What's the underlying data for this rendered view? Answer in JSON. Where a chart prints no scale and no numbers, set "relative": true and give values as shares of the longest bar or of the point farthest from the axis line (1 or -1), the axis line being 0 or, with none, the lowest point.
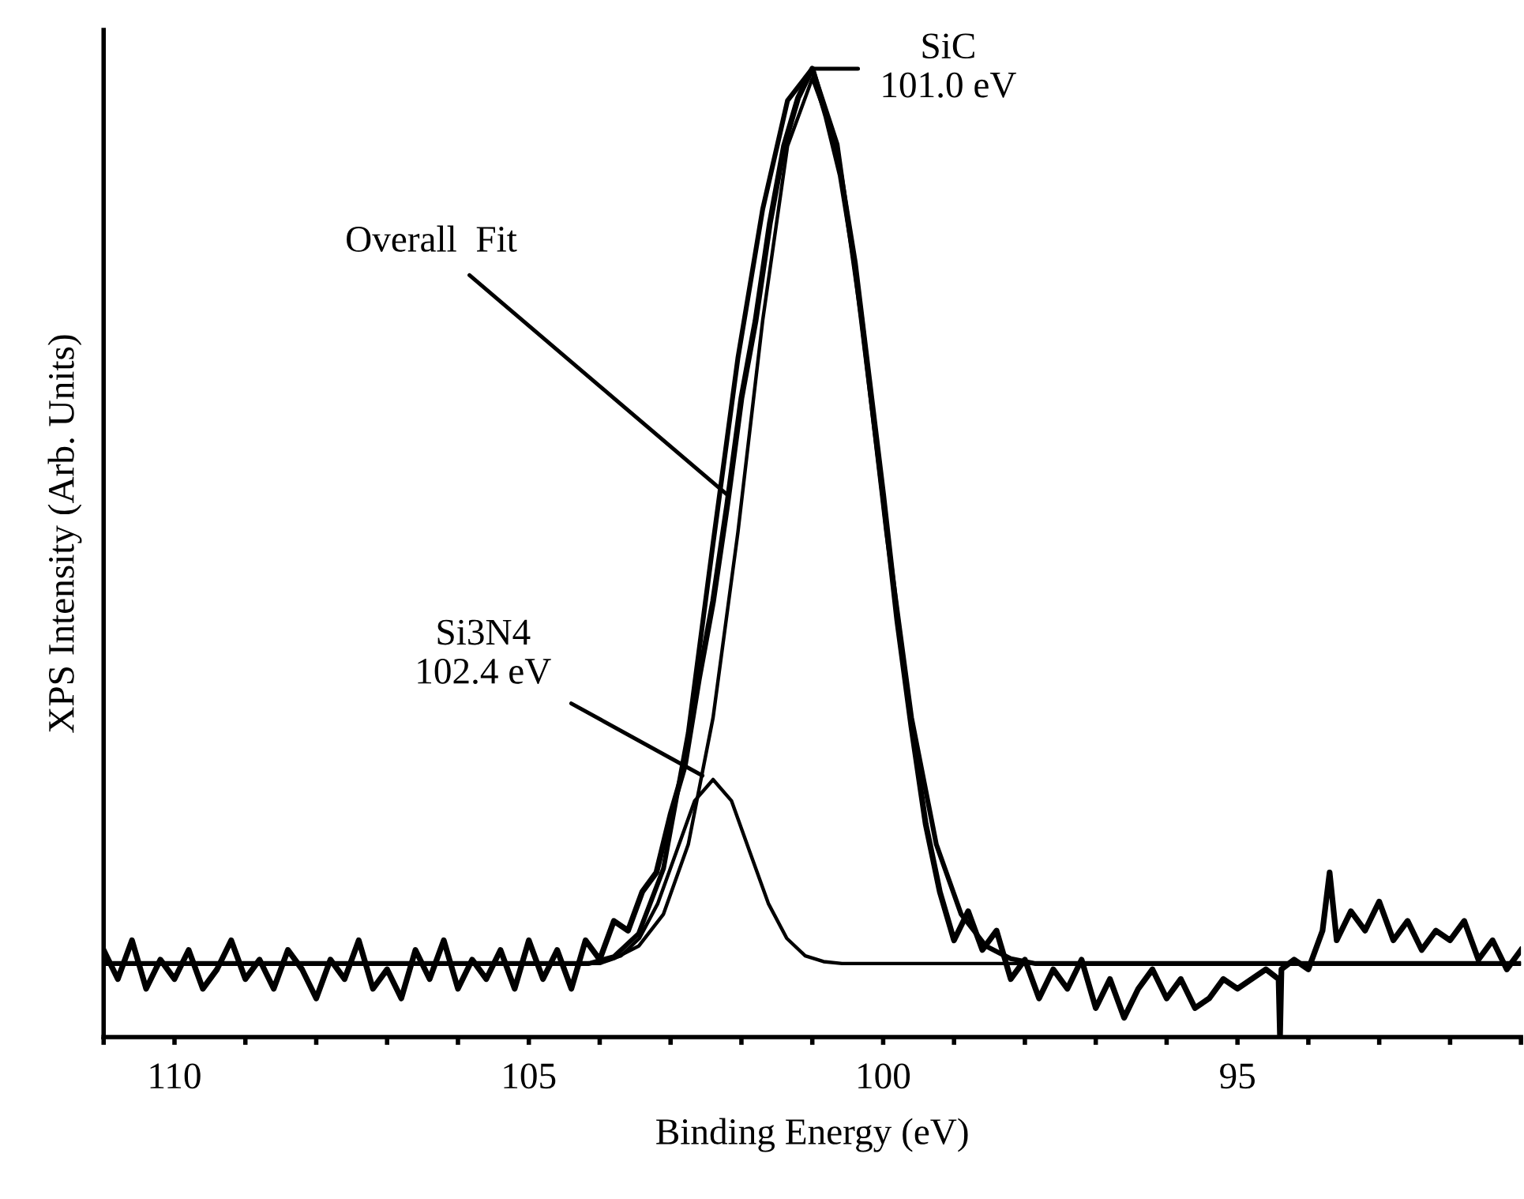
{
  "chart_data": {
    "type": "line",
    "xlabel": "Binding Energy (eV)",
    "ylabel": "XPS Intensity (Arb. Units)",
    "relative": true,
    "xlim": [
      111.0,
      91.0
    ],
    "xticks": [
      {
        "value": 111,
        "label": null
      },
      110,
      {
        "value": 109,
        "label": null
      },
      {
        "value": 108,
        "label": null
      },
      {
        "value": 107,
        "label": null
      },
      {
        "value": 106,
        "label": null
      },
      105,
      {
        "value": 104,
        "label": null
      },
      {
        "value": 103,
        "label": null
      },
      {
        "value": 102,
        "label": null
      },
      {
        "value": 101,
        "label": null
      },
      100,
      {
        "value": 99,
        "label": null
      },
      {
        "value": 98,
        "label": null
      },
      {
        "value": 97,
        "label": null
      },
      {
        "value": 96,
        "label": null
      },
      95,
      {
        "value": 94,
        "label": null
      },
      {
        "value": 93,
        "label": null
      },
      {
        "value": 92,
        "label": null
      },
      {
        "value": 91,
        "label": null
      }
    ],
    "grid": false,
    "legend": false,
    "marker": "none",
    "line_style": "solid",
    "series": [
      {
        "color": "#000000",
        "x": [
          111.0,
          110.8,
          110.6,
          110.4,
          110.2,
          110.0,
          109.8,
          109.6,
          109.4,
          109.2,
          109.0,
          108.8,
          108.6,
          108.4,
          108.2,
          108.0,
          107.8,
          107.6,
          107.4,
          107.2,
          107.0,
          106.8,
          106.6,
          106.4,
          106.2,
          106.0,
          105.8,
          105.6,
          105.4,
          105.2,
          105.0,
          104.8,
          104.6,
          104.4,
          104.2,
          104.0,
          103.8,
          103.6,
          103.4,
          103.2,
          103.0,
          102.8,
          102.6,
          102.4,
          102.2,
          102.0,
          101.8,
          101.6,
          101.4,
          101.2,
          101.0,
          100.8,
          100.6,
          100.4,
          100.2,
          100.0,
          99.8,
          99.6,
          99.4,
          99.2,
          99.0,
          98.8,
          98.6,
          98.4,
          98.2,
          98.0,
          97.8,
          97.6,
          97.4,
          97.2,
          97.0,
          96.8,
          96.6,
          96.4,
          96.2,
          96.0,
          95.8,
          95.6,
          95.4,
          95.2,
          95.0,
          94.8,
          94.6,
          94.42,
          94.4,
          94.38,
          94.2,
          94.0,
          93.8,
          93.7,
          93.6,
          93.4,
          93.2,
          93.0,
          92.8,
          92.6,
          92.4,
          92.2,
          92.0,
          91.8,
          91.6,
          91.4,
          91.2,
          91.0
        ],
        "values": [
          0.09,
          0.06,
          0.1,
          0.05,
          0.08,
          0.06,
          0.09,
          0.05,
          0.07,
          0.1,
          0.06,
          0.08,
          0.05,
          0.09,
          0.07,
          0.04,
          0.08,
          0.06,
          0.1,
          0.05,
          0.07,
          0.04,
          0.09,
          0.06,
          0.1,
          0.05,
          0.08,
          0.06,
          0.09,
          0.05,
          0.1,
          0.06,
          0.09,
          0.05,
          0.1,
          0.08,
          0.12,
          0.11,
          0.15,
          0.17,
          0.23,
          0.28,
          0.37,
          0.45,
          0.55,
          0.66,
          0.74,
          0.84,
          0.92,
          0.97,
          1.0,
          0.95,
          0.89,
          0.8,
          0.68,
          0.56,
          0.43,
          0.32,
          0.22,
          0.15,
          0.1,
          0.13,
          0.09,
          0.11,
          0.06,
          0.08,
          0.04,
          0.07,
          0.05,
          0.08,
          0.03,
          0.06,
          0.02,
          0.05,
          0.07,
          0.04,
          0.06,
          0.03,
          0.04,
          0.06,
          0.05,
          0.06,
          0.07,
          0.06,
          0.0,
          0.07,
          0.08,
          0.07,
          0.11,
          0.17,
          0.1,
          0.13,
          0.11,
          0.14,
          0.1,
          0.12,
          0.09,
          0.11,
          0.1,
          0.12,
          0.08,
          0.1,
          0.07,
          0.09
        ]
      },
      {
        "color": "#000000",
        "x": [
          111.0,
          104.15,
          103.8,
          103.45,
          103.1,
          102.75,
          102.4,
          102.05,
          101.7,
          101.35,
          101.0,
          100.65,
          100.3,
          99.95,
          99.6,
          99.25,
          98.9,
          98.55,
          98.2,
          97.85,
          91.0
        ],
        "values": [
          0.076,
          0.076,
          0.083,
          0.107,
          0.174,
          0.314,
          0.51,
          0.701,
          0.855,
          0.967,
          1.0,
          0.922,
          0.74,
          0.521,
          0.33,
          0.199,
          0.127,
          0.094,
          0.081,
          0.076,
          0.076
        ]
      },
      {
        "color": "#000000",
        "x": [
          111.0,
          104.0,
          103.8,
          103.45,
          103.1,
          102.75,
          102.4,
          102.05,
          101.7,
          101.35,
          101.0,
          100.65,
          100.3,
          99.95,
          99.6,
          99.25,
          98.9,
          98.55,
          98.2,
          97.85,
          91.0
        ],
        "values": [
          0.076,
          0.076,
          0.081,
          0.094,
          0.127,
          0.199,
          0.33,
          0.521,
          0.74,
          0.92,
          0.99,
          0.92,
          0.74,
          0.521,
          0.33,
          0.199,
          0.127,
          0.094,
          0.081,
          0.076,
          0.076
        ]
      },
      {
        "color": "#000000",
        "x": [
          111.0,
          104.2,
          103.96,
          103.7,
          103.44,
          103.18,
          102.92,
          102.66,
          102.4,
          102.14,
          101.88,
          101.62,
          101.36,
          101.1,
          100.84,
          100.58,
          91.0
        ],
        "values": [
          0.076,
          0.076,
          0.078,
          0.084,
          0.102,
          0.138,
          0.191,
          0.244,
          0.266,
          0.244,
          0.191,
          0.138,
          0.102,
          0.084,
          0.078,
          0.076,
          0.076
        ]
      }
    ],
    "annotations": [
      {
        "text": "SiC\n101.0 eV",
        "x": 101.0,
        "y": 1.0
      },
      {
        "text": "Overall  Fit",
        "x": 102.2,
        "y": 0.56
      },
      {
        "text": "Si3N4\n102.4 eV",
        "x": 102.55,
        "y": 0.27
      }
    ]
  }
}
